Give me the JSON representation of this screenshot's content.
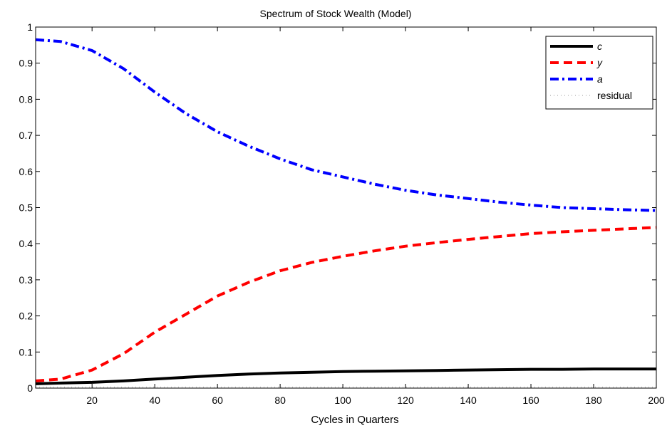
{
  "chart_data": {
    "type": "line",
    "title": "Spectrum of Stock Wealth (Model)",
    "xlabel": "Cycles in Quarters",
    "ylabel": "",
    "xlim": [
      2,
      200
    ],
    "ylim": [
      0,
      1
    ],
    "xticks": [
      20,
      40,
      60,
      80,
      100,
      120,
      140,
      160,
      180,
      200
    ],
    "yticks": [
      0,
      0.1,
      0.2,
      0.3,
      0.4,
      0.5,
      0.6,
      0.7,
      0.8,
      0.9,
      1
    ],
    "ytick_labels": [
      "0",
      "0.1",
      "0.2",
      "0.3",
      "0.4",
      "0.5",
      "0.6",
      "0.7",
      "0.8",
      "0.9",
      "1"
    ],
    "grid": false,
    "legend_position": "top-right",
    "x": [
      2,
      10,
      20,
      30,
      40,
      50,
      60,
      70,
      80,
      90,
      100,
      110,
      120,
      130,
      140,
      150,
      160,
      170,
      180,
      190,
      200
    ],
    "series": [
      {
        "name": "c",
        "color": "#000000",
        "style": "solid",
        "values": [
          0.012,
          0.014,
          0.016,
          0.02,
          0.025,
          0.03,
          0.035,
          0.039,
          0.042,
          0.044,
          0.046,
          0.047,
          0.048,
          0.049,
          0.05,
          0.051,
          0.052,
          0.052,
          0.053,
          0.053,
          0.053
        ]
      },
      {
        "name": "y",
        "color": "#ff0000",
        "style": "dashed",
        "values": [
          0.02,
          0.025,
          0.05,
          0.095,
          0.155,
          0.205,
          0.255,
          0.293,
          0.325,
          0.348,
          0.365,
          0.38,
          0.393,
          0.403,
          0.412,
          0.42,
          0.428,
          0.433,
          0.437,
          0.441,
          0.445
        ]
      },
      {
        "name": "a",
        "color": "#0000ff",
        "style": "dashdot",
        "values": [
          0.965,
          0.96,
          0.935,
          0.885,
          0.82,
          0.76,
          0.71,
          0.67,
          0.635,
          0.605,
          0.585,
          0.565,
          0.548,
          0.535,
          0.525,
          0.515,
          0.507,
          0.5,
          0.497,
          0.494,
          0.492
        ]
      },
      {
        "name": "residual",
        "color": "#999999",
        "style": "dotted",
        "values": [
          0.003,
          0.003,
          0.003,
          0.003,
          0.003,
          0.003,
          0.003,
          0.003,
          0.003,
          0.003,
          0.003,
          0.003,
          0.003,
          0.003,
          0.003,
          0.003,
          0.003,
          0.003,
          0.003,
          0.003,
          0.003
        ]
      }
    ]
  }
}
